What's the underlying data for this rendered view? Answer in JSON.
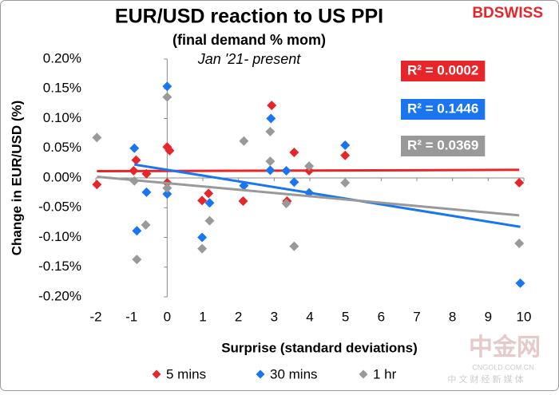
{
  "chart_data": {
    "type": "scatter",
    "title": "EUR/USD reaction to US PPI",
    "subtitle": "(final demand % mom)",
    "annotation": "Jan '21- present",
    "logo": "BDSWISS",
    "watermark": {
      "main": "中金网",
      "site": "CNGOLD.COM.CN",
      "tagline": "中 文 财 经 新 媒 体"
    },
    "x_label": "Surprise (standard deviations)",
    "y_label": "Change in EUR/USD  (%)",
    "xlim": [
      -2,
      10
    ],
    "ylim": [
      -0.2,
      0.2
    ],
    "xticks": [
      -2,
      -1,
      0,
      1,
      2,
      3,
      4,
      5,
      6,
      7,
      8,
      9,
      10
    ],
    "yticks": [
      {
        "value": -0.2,
        "label": "-0.20%"
      },
      {
        "value": -0.15,
        "label": "-0.15%"
      },
      {
        "value": -0.1,
        "label": "-0.10%"
      },
      {
        "value": -0.05,
        "label": "-0.05%"
      },
      {
        "value": 0,
        "label": "0.00%"
      },
      {
        "value": 0.05,
        "label": "0.05%"
      },
      {
        "value": 0.1,
        "label": "0.10%"
      },
      {
        "value": 0.15,
        "label": "0.15%"
      },
      {
        "value": 0.2,
        "label": "0.20%"
      }
    ],
    "trendline": true,
    "series": [
      {
        "name": "5 mins",
        "color": "#e8262a",
        "r_squared_label": "R² = 0.0002",
        "x": [
          -1.97,
          -0.87,
          -0.94,
          -0.58,
          0,
          0.07,
          0,
          0.98,
          1.16,
          2.13,
          2.93,
          3.36,
          3.56,
          3.98,
          4.99,
          9.87
        ],
        "values": [
          -0.011,
          0.03,
          0.012,
          0.007,
          0.052,
          0.046,
          -0.008,
          -0.038,
          -0.026,
          -0.039,
          0.122,
          -0.039,
          0.043,
          0.012,
          0.038,
          -0.008
        ]
      },
      {
        "name": "30 mins",
        "color": "#1a75f0",
        "r_squared_label": "R² = 0.1446",
        "x": [
          -0.92,
          -0.85,
          -0.58,
          0,
          0,
          0.98,
          1.19,
          2.15,
          2.91,
          2.89,
          3.34,
          3.56,
          3.98,
          4.99,
          9.9
        ],
        "values": [
          0.05,
          -0.089,
          -0.024,
          0.154,
          -0.027,
          -0.1,
          -0.042,
          -0.013,
          0.1,
          0.013,
          0.012,
          -0.007,
          -0.025,
          0.055,
          -0.177
        ]
      },
      {
        "name": "1 hr",
        "color": "#999999",
        "r_squared_label": "R² = 0.0369",
        "x": [
          -1.97,
          -0.92,
          -0.85,
          -0.6,
          0,
          0,
          0.98,
          1.19,
          2.15,
          2.89,
          2.89,
          3.34,
          3.56,
          3.98,
          4.99,
          9.87
        ],
        "values": [
          0.068,
          -0.005,
          -0.137,
          -0.079,
          0.136,
          -0.017,
          -0.119,
          -0.072,
          0.062,
          0.078,
          0.028,
          -0.043,
          -0.115,
          0.02,
          -0.008,
          -0.11
        ]
      }
    ]
  }
}
